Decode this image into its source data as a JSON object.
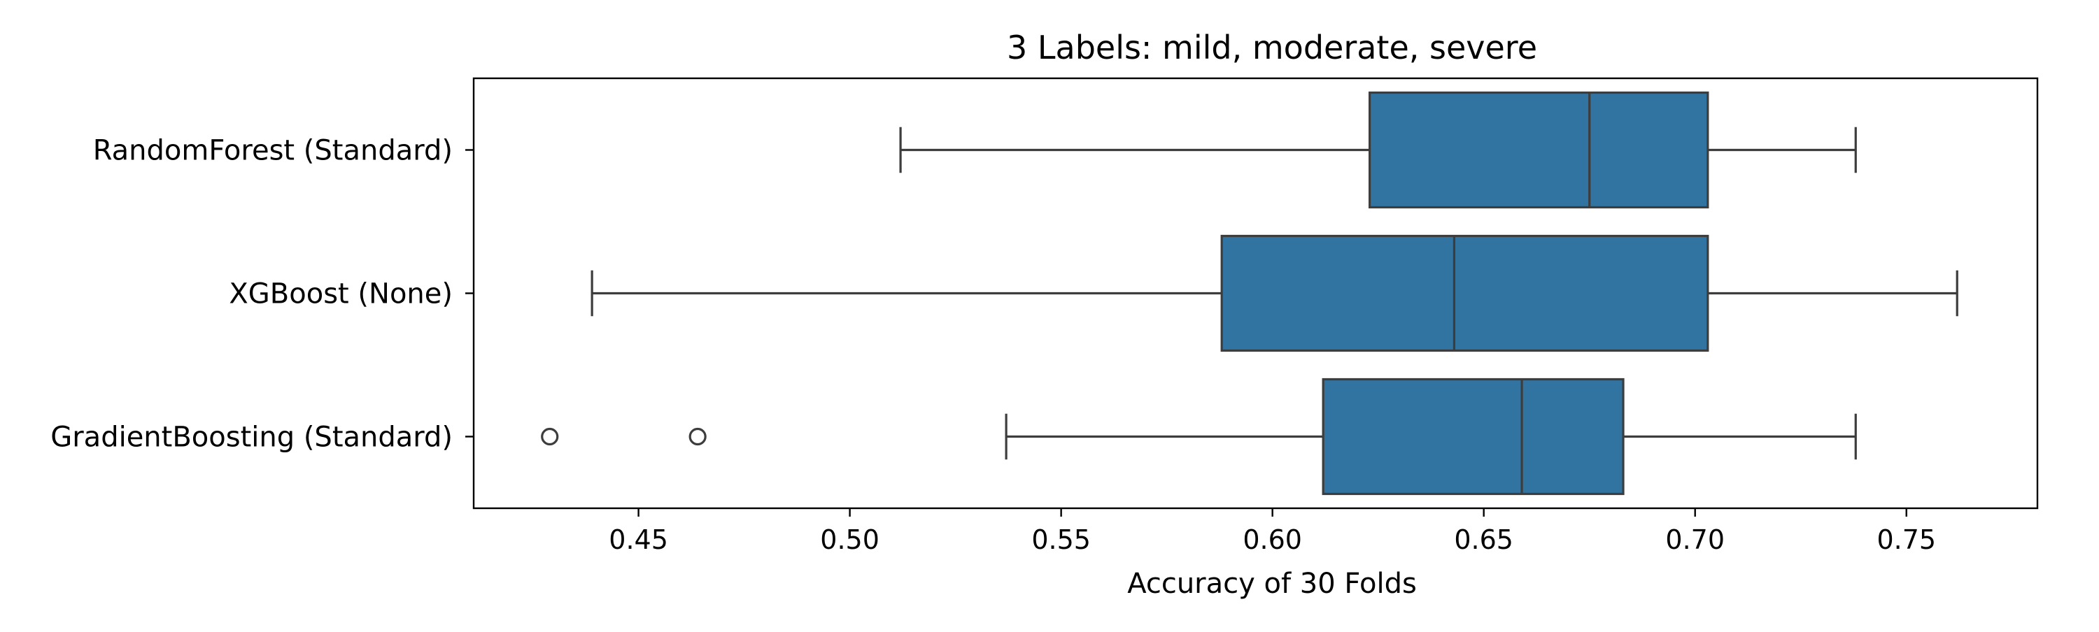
{
  "chart_data": {
    "type": "box",
    "orientation": "horizontal",
    "title": "3 Labels: mild, moderate, severe",
    "xlabel": "Accuracy of 30 Folds",
    "ylabel": "",
    "xlim": [
      0.411,
      0.781
    ],
    "x_ticks": [
      "0.45",
      "0.50",
      "0.55",
      "0.60",
      "0.65",
      "0.70",
      "0.75"
    ],
    "x_tick_values": [
      0.45,
      0.5,
      0.55,
      0.6,
      0.65,
      0.7,
      0.75
    ],
    "grid": false,
    "legend": "none",
    "colors": {
      "box_fill": "#3274a1",
      "box_stroke": "#3d3d3d",
      "axis": "#000000"
    },
    "categories": [
      "RandomForest (Standard)",
      "XGBoost (None)",
      "GradientBoosting (Standard)"
    ],
    "boxes": [
      {
        "category": "RandomForest (Standard)",
        "whisker_low": 0.512,
        "q1": 0.623,
        "median": 0.675,
        "q3": 0.703,
        "whisker_high": 0.738,
        "outliers": []
      },
      {
        "category": "XGBoost (None)",
        "whisker_low": 0.439,
        "q1": 0.588,
        "median": 0.643,
        "q3": 0.703,
        "whisker_high": 0.762,
        "outliers": []
      },
      {
        "category": "GradientBoosting (Standard)",
        "whisker_low": 0.537,
        "q1": 0.612,
        "median": 0.659,
        "q3": 0.683,
        "whisker_high": 0.738,
        "outliers": [
          0.429,
          0.464
        ]
      }
    ]
  }
}
